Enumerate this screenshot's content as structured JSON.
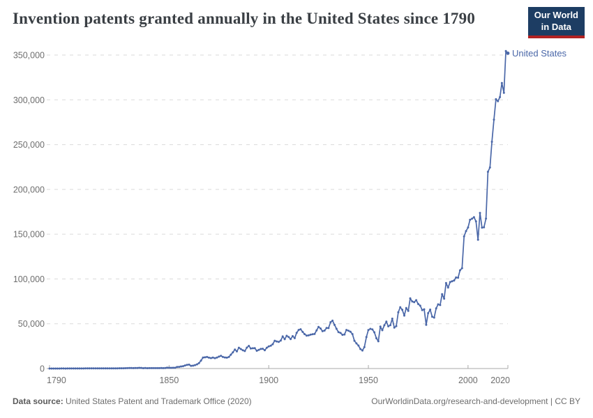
{
  "header": {
    "title": "Invention patents granted annually in the United States since 1790",
    "logo_line1": "Our World",
    "logo_line2": "in Data"
  },
  "chart_data": {
    "type": "line",
    "title": "Invention patents granted annually in the United States since 1790",
    "xlabel": "",
    "ylabel": "",
    "x_ticks": [
      1790,
      1850,
      1900,
      1950,
      2000,
      2020
    ],
    "x_range": [
      1790,
      2020
    ],
    "y_ticks": [
      0,
      50000,
      100000,
      150000,
      200000,
      250000,
      300000,
      350000
    ],
    "y_tick_labels": [
      "0",
      "50,000",
      "100,000",
      "150,000",
      "200,000",
      "250,000",
      "300,000",
      "350,000"
    ],
    "ylim": [
      0,
      350000
    ],
    "grid": "dashed-horizontal",
    "legend_position": "end-of-line",
    "series": [
      {
        "name": "United States",
        "color": "#4a67a8",
        "start_year": 1790,
        "end_year": 2020,
        "values": [
          3,
          33,
          11,
          20,
          22,
          12,
          44,
          51,
          28,
          44,
          41,
          44,
          65,
          97,
          84,
          57,
          63,
          99,
          158,
          203,
          223,
          215,
          238,
          181,
          210,
          173,
          206,
          174,
          222,
          156,
          155,
          168,
          200,
          173,
          228,
          304,
          323,
          331,
          368,
          447,
          544,
          573,
          474,
          586,
          630,
          752,
          702,
          426,
          514,
          404,
          458,
          490,
          488,
          493,
          478,
          473,
          566,
          495,
          583,
          984,
          883,
          752,
          885,
          844,
          1755,
          1881,
          2302,
          2674,
          3455,
          4160,
          4357,
          3020,
          3214,
          3773,
          4630,
          6088,
          8863,
          12277,
          12526,
          12931,
          12137,
          11659,
          12180,
          11616,
          12230,
          13291,
          14169,
          12920,
          12345,
          12165,
          12903,
          15500,
          18091,
          21162,
          19118,
          23285,
          21767,
          20403,
          19551,
          23324,
          25313,
          22312,
          22647,
          22750,
          19855,
          20856,
          21822,
          22067,
          20377,
          23278,
          24644,
          25546,
          27119,
          31029,
          30258,
          29775,
          31170,
          35859,
          32735,
          36561,
          35141,
          32856,
          36198,
          33917,
          39892,
          43118,
          43892,
          40935,
          38452,
          36797,
          37060,
          37798,
          38369,
          38616,
          42584,
          46432,
          44733,
          41717,
          42357,
          45267,
          45226,
          51756,
          53458,
          48774,
          44420,
          40618,
          39782,
          37683,
          38061,
          43073,
          42238,
          41109,
          38449,
          31054,
          28053,
          25695,
          21803,
          20139,
          23963,
          35131,
          43040,
          44326,
          43616,
          40468,
          33809,
          30432,
          46817,
          42744,
          48330,
          52408,
          47170,
          48368,
          55691,
          45679,
          47375,
          62857,
          68406,
          65652,
          59104,
          67559,
          64427,
          78317,
          74810,
          74143,
          76278,
          71994,
          70226,
          65269,
          66102,
          48854,
          61819,
          65771,
          57888,
          56860,
          67200,
          71661,
          70860,
          82952,
          77924,
          95537,
          90365,
          96511,
          97444,
          98342,
          101676,
          101419,
          109645,
          111984,
          147520,
          153485,
          157494,
          166035,
          167331,
          169023,
          164290,
          143806,
          173772,
          157282,
          157772,
          167349,
          219614,
          224505,
          253155,
          277835,
          300678,
          298407,
          303049,
          318829,
          307759,
          354430,
          351993
        ]
      }
    ]
  },
  "footer": {
    "datasource_label": "Data source:",
    "datasource_text": "United States Patent and Trademark Office (2020)",
    "link": "OurWorldinData.org/research-and-development",
    "separator": " | ",
    "license": "CC BY"
  },
  "colors": {
    "line": "#4a67a8",
    "entity_label": "#4a67a8",
    "logo_bg": "#1d3d63",
    "logo_underline": "#b22222",
    "grid": "#dadada",
    "axis": "#a9a9a9",
    "tick_text": "#6e6e6e",
    "title_text": "#3a3f44",
    "footer_text": "#6d6d6d"
  }
}
